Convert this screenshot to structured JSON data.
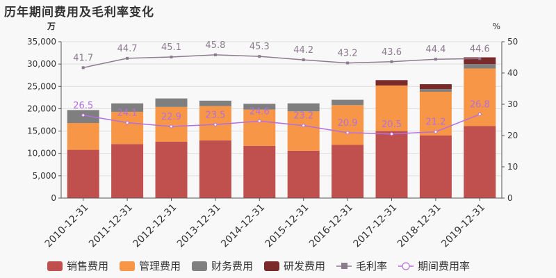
{
  "chart_data": {
    "type": "bar",
    "title": "历年期间费用及毛利率变化",
    "ylabel_left": "万",
    "ylabel_right": "%",
    "categories": [
      "2010-12-31",
      "2011-12-31",
      "2012-12-31",
      "2013-12-31",
      "2014-12-31",
      "2015-12-31",
      "2016-12-31",
      "2017-12-31",
      "2018-12-31",
      "2019-12-31"
    ],
    "ylim_left": [
      0,
      35000
    ],
    "ylim_right": [
      0,
      50
    ],
    "left_ticks": [
      "0",
      "5,000",
      "10,000",
      "15,000",
      "20,000",
      "25,000",
      "30,000",
      "35,000"
    ],
    "right_ticks": [
      "0",
      "10",
      "20",
      "30",
      "40",
      "50"
    ],
    "stacked_series": [
      {
        "name": "销售费用",
        "color": "#c0504d",
        "values": [
          10800,
          12100,
          12600,
          12900,
          11700,
          10600,
          11900,
          15000,
          14000,
          16100
        ]
      },
      {
        "name": "管理费用",
        "color": "#f79646",
        "values": [
          6000,
          7200,
          7800,
          7700,
          8100,
          8800,
          8900,
          10200,
          9800,
          12900
        ]
      },
      {
        "name": "财务费用",
        "color": "#7f7f7f",
        "values": [
          2900,
          1900,
          1900,
          1200,
          1300,
          1800,
          1200,
          0,
          600,
          1000
        ]
      },
      {
        "name": "研发费用",
        "color": "#7b2a2a",
        "values": [
          0,
          0,
          0,
          0,
          0,
          0,
          0,
          1200,
          1100,
          1500
        ]
      }
    ],
    "line_series": [
      {
        "name": "毛利率",
        "color": "#8c7b8e",
        "values": [
          41.7,
          44.7,
          45.1,
          45.8,
          45.3,
          44.2,
          43.2,
          43.6,
          44.4,
          44.6
        ],
        "labels": [
          "41.7",
          "44.7",
          "45.1",
          "45.8",
          "45.3",
          "44.2",
          "43.2",
          "43.6",
          "44.4",
          "44.6"
        ]
      },
      {
        "name": "期间费用率",
        "color": "#b36ee0",
        "values": [
          26.5,
          24.1,
          22.9,
          23.5,
          24.6,
          23.2,
          20.9,
          20.5,
          21.2,
          26.8
        ],
        "labels": [
          "26.5",
          "24.1",
          "22.9",
          "23.5",
          "24.6",
          "23.2",
          "20.9",
          "20.5",
          "21.2",
          "26.8"
        ]
      }
    ],
    "legend_position": "bottom",
    "grid": true
  }
}
